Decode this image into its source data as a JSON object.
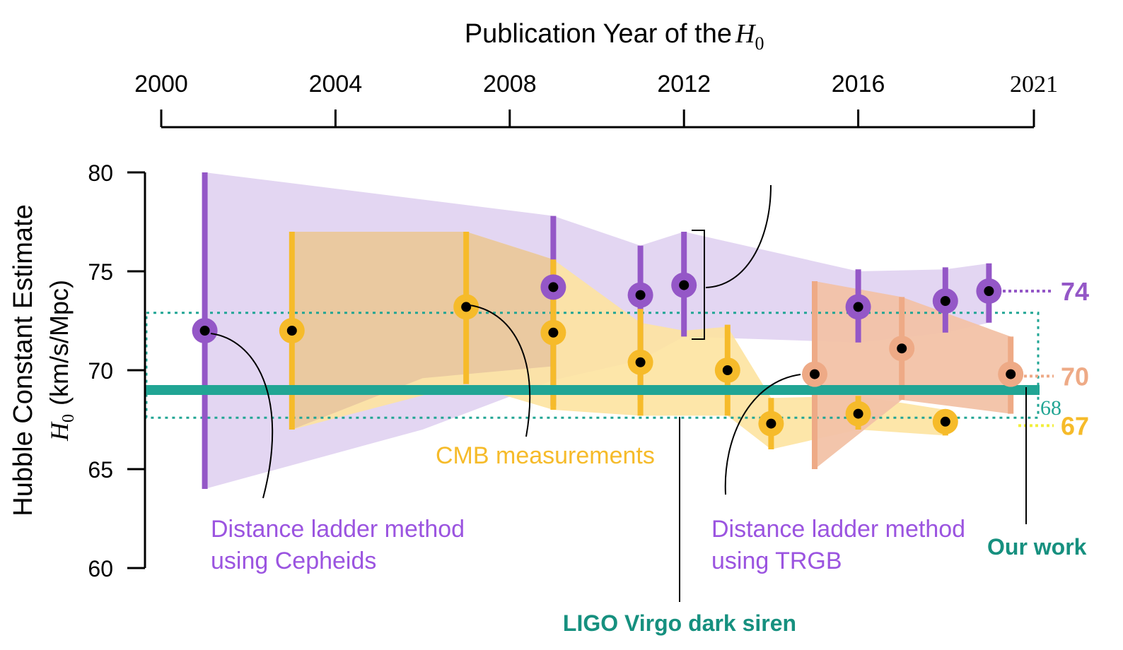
{
  "chart_data": {
    "type": "scatter",
    "top_axis": {
      "title": "Publication Year of the",
      "title_symbol": "H",
      "title_subscript": "0",
      "ticks": [
        2000,
        2004,
        2008,
        2012,
        2016,
        2021
      ],
      "range": [
        2000,
        2021
      ]
    },
    "y_axis": {
      "label": "Hubble Constant Estimate",
      "label_symbol": "H",
      "label_subscript": "0",
      "label_units": "(km/s/Mpc)",
      "ticks": [
        60,
        65,
        70,
        75,
        80
      ],
      "range": [
        60,
        80
      ]
    },
    "colors": {
      "cepheid": "#9457c7",
      "cepheid_band": "#e3d6f2",
      "cmb": "#f6bb2a",
      "cmb_band": "#fde3a0",
      "trgb": "#eeaa86",
      "trgb_band": "#f2c2a6",
      "overlap_band": "#eac9a0",
      "our_work": "#21a594",
      "our_work_dark": "#16907f"
    },
    "series": [
      {
        "name": "Distance ladder method using Cepheids",
        "color": "#9457c7",
        "points": [
          {
            "x": 2001,
            "y": 72.0,
            "low": 64.0,
            "high": 80.0
          },
          {
            "x": 2009,
            "y": 74.2,
            "low": 68.2,
            "high": 77.8
          },
          {
            "x": 2011,
            "y": 73.8,
            "low": 68.5,
            "high": 76.3
          },
          {
            "x": 2012,
            "y": 74.3,
            "low": 71.7,
            "high": 77.0
          },
          {
            "x": 2016,
            "y": 73.2,
            "low": 71.4,
            "high": 75.1
          },
          {
            "x": 2018,
            "y": 73.5,
            "low": 71.9,
            "high": 75.2
          },
          {
            "x": 2019,
            "y": 74.0,
            "low": 72.4,
            "high": 75.4
          }
        ],
        "band_upper": [
          [
            2001,
            80.0
          ],
          [
            2009,
            77.8
          ],
          [
            2011,
            76.3
          ],
          [
            2012,
            77.0
          ],
          [
            2016,
            75.0
          ],
          [
            2018,
            75.1
          ],
          [
            2019,
            75.4
          ]
        ],
        "band_lower": [
          [
            2001,
            64.0
          ],
          [
            2006,
            67.0
          ],
          [
            2009,
            69.5
          ],
          [
            2011,
            70.5
          ],
          [
            2012,
            71.7
          ],
          [
            2016,
            71.4
          ],
          [
            2018,
            71.9
          ],
          [
            2019,
            72.4
          ]
        ]
      },
      {
        "name": "CMB measurements",
        "color": "#f6bb2a",
        "points": [
          {
            "x": 2003,
            "y": 72.0,
            "low": 67.0,
            "high": 77.0
          },
          {
            "x": 2007,
            "y": 73.2,
            "low": 69.3,
            "high": 77.0
          },
          {
            "x": 2009,
            "y": 71.9,
            "low": 68.0,
            "high": 75.6
          },
          {
            "x": 2011,
            "y": 70.4,
            "low": 67.7,
            "high": 73.1
          },
          {
            "x": 2013,
            "y": 70.0,
            "low": 67.7,
            "high": 72.3
          },
          {
            "x": 2014,
            "y": 67.3,
            "low": 66.0,
            "high": 68.6
          },
          {
            "x": 2016,
            "y": 67.8,
            "low": 67.0,
            "high": 68.7
          },
          {
            "x": 2018,
            "y": 67.4,
            "low": 66.7,
            "high": 68.0
          }
        ],
        "band_upper": [
          [
            2003,
            77.0
          ],
          [
            2007,
            77.0
          ],
          [
            2009,
            75.6
          ],
          [
            2011,
            72.4
          ],
          [
            2012,
            72.0
          ],
          [
            2013,
            72.2
          ],
          [
            2014,
            68.6
          ],
          [
            2016,
            68.7
          ],
          [
            2018,
            68.0
          ]
        ],
        "band_lower": [
          [
            2003,
            67.0
          ],
          [
            2007,
            69.3
          ],
          [
            2009,
            68.0
          ],
          [
            2011,
            67.7
          ],
          [
            2013,
            67.7
          ],
          [
            2014,
            66.0
          ],
          [
            2016,
            67.0
          ],
          [
            2018,
            66.7
          ]
        ]
      },
      {
        "name": "Distance ladder method using TRGB",
        "color": "#eeaa86",
        "points": [
          {
            "x": 2015,
            "y": 69.8,
            "low": 65.0,
            "high": 74.5
          },
          {
            "x": 2017,
            "y": 71.1,
            "low": 68.5,
            "high": 73.7
          },
          {
            "x": 2019.5,
            "y": 69.8,
            "low": 67.8,
            "high": 71.7
          }
        ],
        "band_upper": [
          [
            2015,
            74.5
          ],
          [
            2017,
            73.7
          ],
          [
            2019.5,
            71.7
          ]
        ],
        "band_lower": [
          [
            2015,
            65.0
          ],
          [
            2017,
            68.5
          ],
          [
            2019.5,
            67.8
          ]
        ]
      }
    ],
    "our_work": {
      "value": 69.0,
      "low": 67.6,
      "high": 72.9
    },
    "right_values": [
      {
        "label": "74",
        "value": 74.0,
        "color": "#9457c7"
      },
      {
        "label": "70",
        "value": 69.7,
        "color": "#eeaa86"
      },
      {
        "label": "68",
        "value": 68.1,
        "color": "#21a594"
      },
      {
        "label": "67",
        "value": 67.2,
        "color": "#f6bb2a"
      }
    ],
    "annotations": {
      "cepheids_line1": "Distance ladder method",
      "cepheids_line2": "using Cepheids",
      "cmb": "CMB measurements",
      "trgb_line1": "Distance ladder method",
      "trgb_line2": "using TRGB",
      "our_work": "Our work",
      "ligo": "LIGO Virgo dark siren"
    }
  }
}
